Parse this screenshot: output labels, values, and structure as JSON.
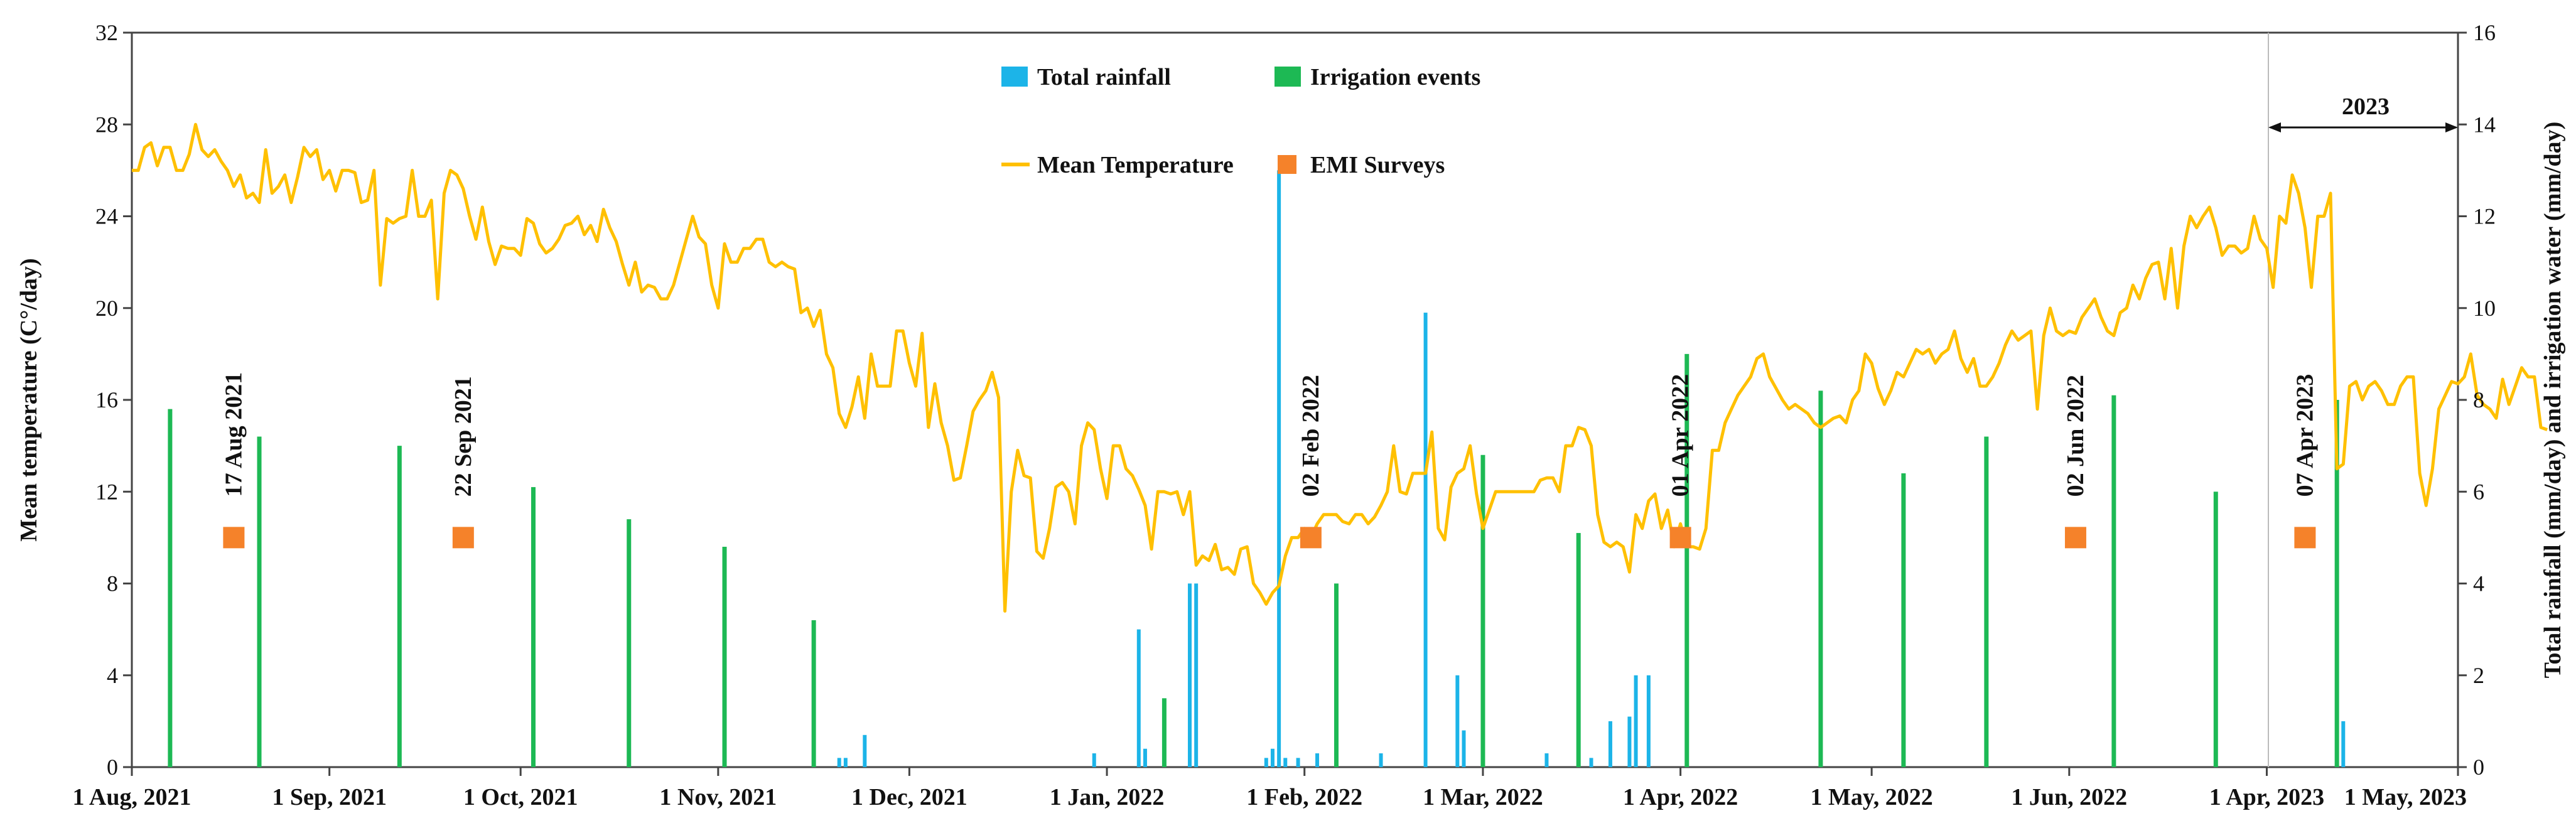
{
  "chart_data": {
    "type": "bar+line",
    "x_ticks": [
      "1 Aug, 2021",
      "1 Sep, 2021",
      "1 Oct, 2021",
      "1 Nov, 2021",
      "1 Dec, 2021",
      "1 Jan, 2022",
      "1 Feb, 2022",
      "1 Mar, 2022",
      "1 Apr, 2022",
      "1 May, 2022",
      "1 Jun, 2022",
      "1 Apr, 2023",
      "1 May, 2023"
    ],
    "x_tick_index": [
      0,
      31,
      61,
      92,
      122,
      153,
      184,
      212,
      243,
      273,
      304,
      335,
      365
    ],
    "y_left": {
      "label": "Mean temperature (C°/day)",
      "lim": [
        0,
        32
      ],
      "ticks": [
        0,
        4,
        8,
        12,
        16,
        20,
        24,
        28,
        32
      ]
    },
    "y_right": {
      "label": "Total rainfall (mm/day) and  irrigation water (mm/day)",
      "lim": [
        0,
        16
      ],
      "ticks": [
        0,
        2,
        4,
        6,
        8,
        10,
        12,
        14,
        16
      ]
    },
    "legend": [
      "Total rainfall",
      "Irrigation events",
      "Mean Temperature",
      "EMI Surveys"
    ],
    "period_label": "2023",
    "colors": {
      "rainfall": "#1cb4e8",
      "irrigation": "#1db954",
      "temperature": "#ffc000",
      "emi": "#f5822a"
    },
    "emi_surveys": [
      {
        "label": "17 Aug 2021",
        "day": 16,
        "y": 10
      },
      {
        "label": "22 Sep 2021",
        "day": 52,
        "y": 10
      },
      {
        "label": "02 Feb 2022",
        "day": 185,
        "y": 10
      },
      {
        "label": "01 Apr 2022",
        "day": 243,
        "y": 10
      },
      {
        "label": "02 Jun 2022",
        "day": 305,
        "y": 10
      },
      {
        "label": "07 Apr 2023",
        "day": 341,
        "y": 10
      }
    ],
    "irrigation": [
      [
        6,
        7.8
      ],
      [
        20,
        7.2
      ],
      [
        42,
        7.0
      ],
      [
        63,
        6.1
      ],
      [
        78,
        5.4
      ],
      [
        93,
        4.8
      ],
      [
        107,
        3.2
      ],
      [
        162,
        1.5
      ],
      [
        189,
        4.0
      ],
      [
        212,
        6.8
      ],
      [
        227,
        5.1
      ],
      [
        244,
        9.0
      ],
      [
        265,
        8.2
      ],
      [
        278,
        6.4
      ],
      [
        291,
        7.2
      ],
      [
        311,
        8.1
      ],
      [
        327,
        6.0
      ],
      [
        346,
        8.0
      ]
    ],
    "rainfall": [
      [
        111,
        0.2
      ],
      [
        112,
        0.2
      ],
      [
        115,
        0.7
      ],
      [
        151,
        0.3
      ],
      [
        158,
        3.0
      ],
      [
        159,
        0.4
      ],
      [
        162,
        0.3
      ],
      [
        166,
        4.0
      ],
      [
        167,
        4.0
      ],
      [
        178,
        0.2
      ],
      [
        179,
        0.4
      ],
      [
        180,
        13.0
      ],
      [
        181,
        0.2
      ],
      [
        183,
        0.2
      ],
      [
        186,
        0.3
      ],
      [
        189,
        1.0
      ],
      [
        196,
        0.3
      ],
      [
        203,
        9.9
      ],
      [
        208,
        2.0
      ],
      [
        209,
        0.8
      ],
      [
        222,
        0.3
      ],
      [
        229,
        0.2
      ],
      [
        232,
        1.0
      ],
      [
        235,
        1.1
      ],
      [
        236,
        2.0
      ],
      [
        238,
        2.0
      ],
      [
        346,
        2.0
      ],
      [
        347,
        1.0
      ]
    ],
    "temperature": [
      26.0,
      26.0,
      27.0,
      27.2,
      26.2,
      27.0,
      27.0,
      26.0,
      26.0,
      26.7,
      28.0,
      26.9,
      26.6,
      26.9,
      26.4,
      26.0,
      25.3,
      25.8,
      24.8,
      25.0,
      24.6,
      26.9,
      25.0,
      25.3,
      25.8,
      24.6,
      25.7,
      27.0,
      26.6,
      26.9,
      25.6,
      26.0,
      25.1,
      26.0,
      26.0,
      25.9,
      24.6,
      24.7,
      26.0,
      21.0,
      23.9,
      23.7,
      23.9,
      24.0,
      26.0,
      24.0,
      24.0,
      24.7,
      20.4,
      25.0,
      26.0,
      25.8,
      25.2,
      24.0,
      23.0,
      24.4,
      22.9,
      21.9,
      22.7,
      22.6,
      22.6,
      22.3,
      23.9,
      23.7,
      22.8,
      22.4,
      22.6,
      23.0,
      23.6,
      23.7,
      24.0,
      23.2,
      23.6,
      22.9,
      24.3,
      23.5,
      22.9,
      21.9,
      21.0,
      22.0,
      20.7,
      21.0,
      20.9,
      20.4,
      20.4,
      21.0,
      22.0,
      23.0,
      24.0,
      23.1,
      22.8,
      21.0,
      20.0,
      22.8,
      22.0,
      22.0,
      22.6,
      22.6,
      23.0,
      23.0,
      22.0,
      21.8,
      22.0,
      21.8,
      21.7,
      19.8,
      20.0,
      19.2,
      19.9,
      18.0,
      17.4,
      15.4,
      14.8,
      15.7,
      17.0,
      15.2,
      18.0,
      16.6,
      16.6,
      16.6,
      19.0,
      19.0,
      17.6,
      16.6,
      18.9,
      14.8,
      16.7,
      15.0,
      14.0,
      12.5,
      12.6,
      14.0,
      15.5,
      16.0,
      16.4,
      17.2,
      16.1,
      6.8,
      12.0,
      13.8,
      12.7,
      12.6,
      9.4,
      9.1,
      10.4,
      12.2,
      12.4,
      12.0,
      10.6,
      14.0,
      15.0,
      14.7,
      13.0,
      11.7,
      14.0,
      14.0,
      13.0,
      12.7,
      12.1,
      11.4,
      9.5,
      12.0,
      12.0,
      11.9,
      12.0,
      11.0,
      12.0,
      8.8,
      9.2,
      9.0,
      9.7,
      8.6,
      8.7,
      8.4,
      9.5,
      9.6,
      8.0,
      7.6,
      7.1,
      7.6,
      7.9,
      9.2,
      10.0,
      10.0,
      10.4,
      10.0,
      10.6,
      11.0,
      11.0,
      11.0,
      10.7,
      10.6,
      11.0,
      11.0,
      10.6,
      10.9,
      11.4,
      12.0,
      14.0,
      12.0,
      11.9,
      12.8,
      12.8,
      12.8,
      14.6,
      10.4,
      9.9,
      12.2,
      12.8,
      13.0,
      14.0,
      11.9,
      10.4,
      11.2,
      12.0,
      12.0,
      12.0,
      12.0,
      12.0,
      12.0,
      12.0,
      12.5,
      12.6,
      12.6,
      12.0,
      14.0,
      14.0,
      14.8,
      14.7,
      14.0,
      11.0,
      9.8,
      9.6,
      9.8,
      9.6,
      8.5,
      11.0,
      10.4,
      11.6,
      11.9,
      10.4,
      11.2,
      9.6,
      10.6,
      9.6,
      9.6,
      9.5,
      10.4,
      13.8,
      13.8,
      15.0,
      15.6,
      16.2,
      16.6,
      17.0,
      17.8,
      18.0,
      17.0,
      16.5,
      16.0,
      15.6,
      15.8,
      15.6,
      15.4,
      15.0,
      14.8,
      15.0,
      15.2,
      15.3,
      15.0,
      16.0,
      16.4,
      18.0,
      17.6,
      16.5,
      15.8,
      16.4,
      17.2,
      17.0,
      17.6,
      18.2,
      18.0,
      18.2,
      17.6,
      18.0,
      18.2,
      19.0,
      17.8,
      17.2,
      17.8,
      16.6,
      16.6,
      17.0,
      17.6,
      18.4,
      19.0,
      18.6,
      18.8,
      19.0,
      15.6,
      18.8,
      20.0,
      19.0,
      18.8,
      19.0,
      18.9,
      19.6,
      20.0,
      20.4,
      19.6,
      19.0,
      18.8,
      19.8,
      20.0,
      21.0,
      20.4,
      21.3,
      21.9,
      22.0,
      20.4,
      22.6,
      20.0,
      22.7,
      24.0,
      23.5,
      24.0,
      24.4,
      23.5,
      22.3,
      22.7,
      22.7,
      22.4,
      22.6,
      24.0,
      23.0,
      22.6,
      20.9,
      24.0,
      23.7,
      25.8,
      25.0,
      23.5,
      20.9,
      24.0,
      24.0,
      25.0,
      13.0,
      13.2,
      16.6,
      16.8,
      16.0,
      16.6,
      16.8,
      16.4,
      15.8,
      15.8,
      16.6,
      17.0,
      17.0,
      12.8,
      11.4,
      13.0,
      15.6,
      16.2,
      16.8,
      16.7,
      17.0,
      18.0,
      16.2,
      15.8,
      15.6,
      15.2,
      16.9,
      15.8,
      16.6,
      17.4,
      17.0,
      17.0,
      14.8,
      14.7
    ]
  }
}
